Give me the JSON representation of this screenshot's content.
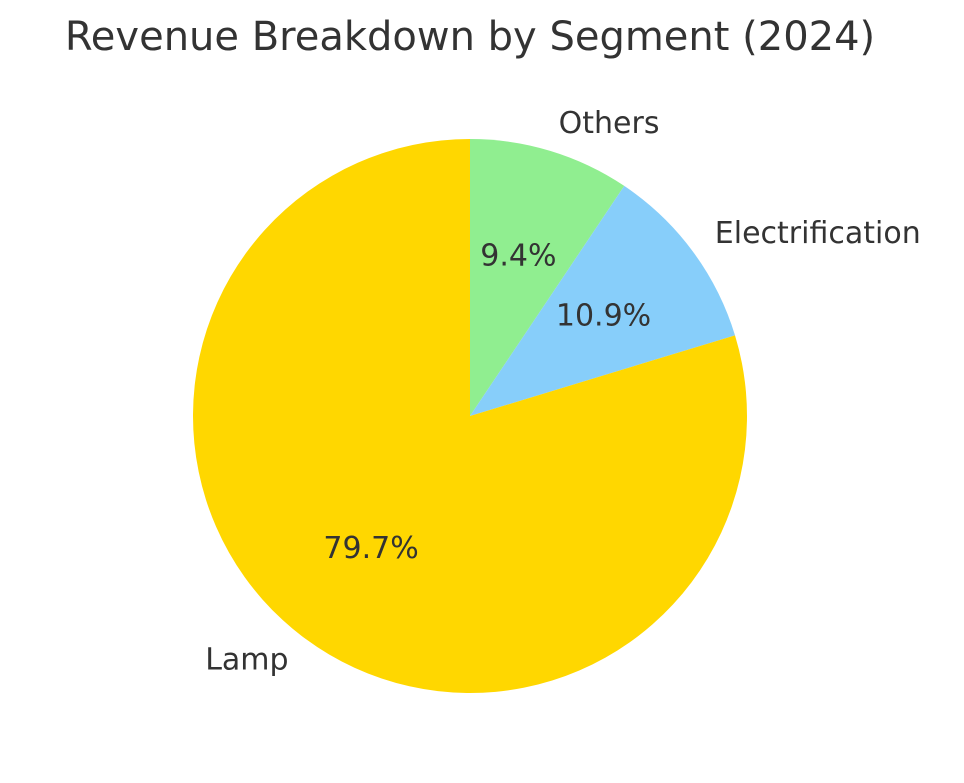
{
  "chart_data": {
    "type": "pie",
    "title": "Revenue Breakdown by Segment (2024)",
    "start_angle_deg": 90,
    "direction": "clockwise",
    "slices": [
      {
        "label": "Others",
        "value": 9.4,
        "pct_label": "9.4%",
        "color": "#90EE90"
      },
      {
        "label": "Electrification",
        "value": 10.9,
        "pct_label": "10.9%",
        "color": "#87CEFA"
      },
      {
        "label": "Lamp",
        "value": 79.7,
        "pct_label": "79.7%",
        "color": "#FFD700"
      }
    ]
  }
}
